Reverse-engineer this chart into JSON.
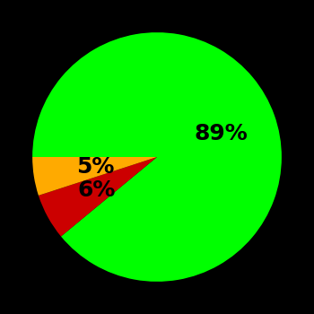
{
  "slices": [
    89,
    6,
    5
  ],
  "colors": [
    "#00ff00",
    "#cc0000",
    "#ffaa00"
  ],
  "labels": [
    "89%",
    "6%",
    "5%"
  ],
  "label_radii": [
    0.55,
    0.55,
    0.5
  ],
  "background_color": "#000000",
  "label_fontsize": 18,
  "label_fontweight": "bold",
  "startangle": 180,
  "counterclock": false,
  "figsize": [
    3.5,
    3.5
  ],
  "dpi": 100
}
